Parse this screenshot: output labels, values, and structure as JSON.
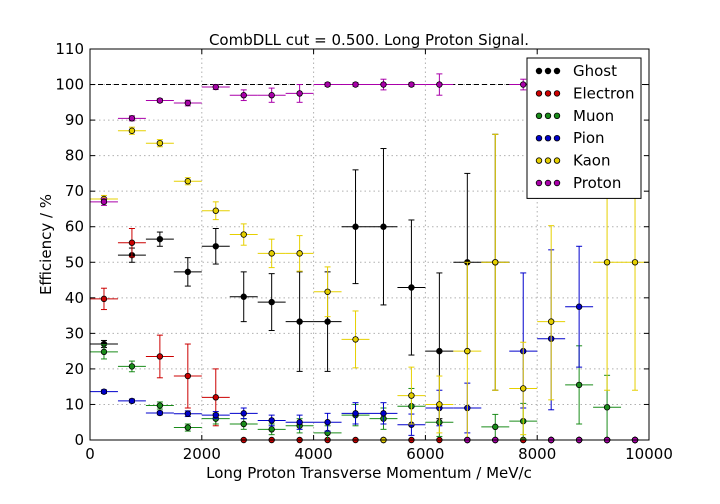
{
  "chart_data": {
    "type": "scatter",
    "title": "CombDLL cut = 0.500. Long Proton Signal.",
    "xlabel": "Long Proton Transverse Momentum / MeV/c",
    "ylabel": "Efficiency / %",
    "xlim": [
      0,
      10000
    ],
    "ylim": [
      0,
      110
    ],
    "xticks": [
      0,
      2000,
      4000,
      6000,
      8000,
      10000
    ],
    "yticks": [
      0,
      10,
      20,
      30,
      40,
      50,
      60,
      70,
      80,
      90,
      100,
      110
    ],
    "grid": true,
    "legend_position": "top-right",
    "reference_line": 100,
    "x": [
      250,
      750,
      1250,
      1750,
      2250,
      2750,
      3250,
      3750,
      4250,
      4750,
      5250,
      5750,
      6250,
      6750,
      7250,
      7750,
      8250,
      8750,
      9250,
      9750
    ],
    "x_error": 250,
    "series": [
      {
        "name": "Ghost",
        "color": "#000000",
        "values": [
          27,
          52,
          56.5,
          47.3,
          54.5,
          40.3,
          38.8,
          33.3,
          33.3,
          60,
          60,
          42.9,
          25,
          50,
          50,
          0,
          0,
          0,
          0,
          0
        ],
        "err_low": [
          1,
          2,
          2,
          4,
          5,
          7,
          8,
          14,
          14,
          16,
          22,
          19,
          19,
          25,
          36,
          0,
          0,
          0,
          0,
          0
        ],
        "err_high": [
          1,
          2,
          2,
          4,
          5,
          7,
          8,
          14,
          14,
          16,
          22,
          19,
          22,
          25,
          36,
          0,
          0,
          0,
          0,
          0
        ]
      },
      {
        "name": "Electron",
        "color": "#cc0000",
        "values": [
          39.7,
          55.5,
          23.5,
          18,
          12,
          0,
          0,
          0,
          0,
          0,
          0,
          0,
          0,
          0,
          0,
          0,
          0,
          0,
          0,
          0
        ],
        "err_low": [
          3,
          4,
          6,
          9,
          8,
          0,
          0,
          0,
          0,
          0,
          0,
          0,
          0,
          0,
          0,
          0,
          0,
          0,
          0,
          0
        ],
        "err_high": [
          3,
          4,
          6,
          9,
          8,
          0,
          0,
          0,
          0,
          0,
          0,
          0,
          0,
          0,
          0,
          0,
          0,
          0,
          0,
          0
        ]
      },
      {
        "name": "Muon",
        "color": "#1a8c1a",
        "values": [
          24.8,
          20.7,
          9.7,
          3.5,
          6,
          4.5,
          3,
          4,
          2,
          7,
          6,
          9.5,
          5,
          0,
          3.7,
          5.3,
          0,
          15.5,
          9.2,
          0
        ],
        "err_low": [
          2,
          1.5,
          1,
          1,
          1.5,
          1.5,
          1.5,
          2,
          2,
          3,
          3,
          5,
          4,
          0,
          3.5,
          5,
          0,
          11,
          9,
          0
        ],
        "err_high": [
          2,
          1.5,
          1,
          1,
          1.5,
          1.5,
          1.5,
          2,
          2,
          3,
          3,
          5,
          4,
          0,
          3.5,
          5,
          0,
          11,
          9,
          0
        ]
      },
      {
        "name": "Pion",
        "color": "#0000cc",
        "values": [
          13.6,
          11,
          7.6,
          7.4,
          7,
          7.5,
          5.5,
          5,
          5,
          7.5,
          7.5,
          4.3,
          9,
          9,
          0,
          25,
          28.5,
          37.5,
          0,
          0
        ],
        "err_low": [
          0.5,
          0.5,
          0.5,
          0.8,
          1,
          1.5,
          1.5,
          2,
          2.5,
          3,
          3,
          3,
          5,
          7,
          0,
          16,
          20,
          17,
          0,
          0
        ],
        "err_high": [
          0.5,
          0.5,
          0.5,
          0.8,
          1,
          1.5,
          1.5,
          2,
          2.5,
          3,
          3,
          3,
          5,
          7,
          0,
          22,
          25,
          17,
          0,
          0
        ]
      },
      {
        "name": "Kaon",
        "color": "#e6d000",
        "values": [
          67.8,
          87,
          83.5,
          72.8,
          64.5,
          57.8,
          52.5,
          52.5,
          41.7,
          28.3,
          0,
          12.5,
          10,
          25,
          50,
          14.5,
          33.3,
          0,
          50,
          50
        ],
        "err_low": [
          1,
          1,
          1,
          1,
          2.5,
          3,
          4,
          5,
          7,
          8,
          0,
          8,
          8,
          25,
          36,
          13,
          22,
          0,
          36,
          36
        ],
        "err_high": [
          1,
          1,
          1,
          1,
          2.5,
          3,
          4,
          5,
          7,
          8,
          0,
          8,
          8,
          25,
          36,
          13,
          27,
          0,
          36,
          36
        ]
      },
      {
        "name": "Proton",
        "color": "#aa00aa",
        "values": [
          67,
          90.5,
          95.5,
          94.8,
          99.3,
          97,
          97,
          97.5,
          100,
          100,
          100,
          100,
          100,
          0,
          0,
          100,
          0,
          0,
          0,
          0
        ],
        "err_low": [
          1,
          0.7,
          0.5,
          0.8,
          0.7,
          1.5,
          2,
          2.5,
          0.5,
          0.5,
          1.5,
          0.5,
          3,
          0,
          0,
          1.5,
          0,
          0,
          0,
          0
        ],
        "err_high": [
          1,
          0.7,
          0.5,
          0.8,
          0.7,
          1.5,
          2,
          2.5,
          0.5,
          0.5,
          1.5,
          0.5,
          3,
          0,
          0,
          1.5,
          0,
          0,
          0,
          0
        ]
      }
    ]
  }
}
